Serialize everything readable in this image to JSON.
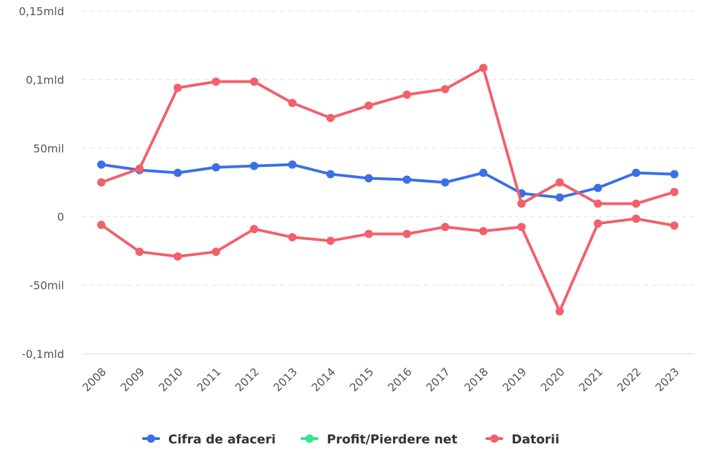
{
  "chart_data": {
    "type": "line",
    "title": "",
    "xlabel": "",
    "ylabel": "",
    "x": [
      "2008",
      "2009",
      "2010",
      "2011",
      "2012",
      "2013",
      "2014",
      "2015",
      "2016",
      "2017",
      "2018",
      "2019",
      "2020",
      "2021",
      "2022",
      "2023"
    ],
    "ylim": [
      -100000000,
      150000000
    ],
    "yticks": [
      {
        "value": 150000000,
        "label": "0,15mld"
      },
      {
        "value": 100000000,
        "label": "0,1mld"
      },
      {
        "value": 50000000,
        "label": "50mil"
      },
      {
        "value": 0,
        "label": "0"
      },
      {
        "value": -50000000,
        "label": "-50mil"
      },
      {
        "value": -100000000,
        "label": "-0,1mld"
      }
    ],
    "grid": true,
    "legend_position": "bottom",
    "series": [
      {
        "name": "Cifra de afaceri",
        "color": "#3a6fe8",
        "negative_color": "#3a6fe8",
        "values": [
          38000000,
          34000000,
          32000000,
          36000000,
          37000000,
          38000000,
          31000000,
          28000000,
          27000000,
          25000000,
          32000000,
          17000000,
          14000000,
          21000000,
          32000000,
          31000000
        ]
      },
      {
        "name": "Profit/Pierdere net",
        "color": "#2ee88a",
        "negative_color": "#f2606b",
        "values": [
          -6000000,
          -25600000,
          -29000000,
          -25600000,
          -9000000,
          -15000000,
          -17600000,
          -12600000,
          -12600000,
          -7500000,
          -10500000,
          -7500000,
          -69000000,
          -5000000,
          -1500000,
          -6500000
        ]
      },
      {
        "name": "Datorii",
        "color": "#f2606b",
        "negative_color": "#f2606b",
        "values": [
          25000000,
          35000000,
          94000000,
          98500000,
          98500000,
          83000000,
          72000000,
          81000000,
          89000000,
          93000000,
          108500000,
          9500000,
          25000000,
          9500000,
          9500000,
          18000000
        ]
      }
    ]
  }
}
